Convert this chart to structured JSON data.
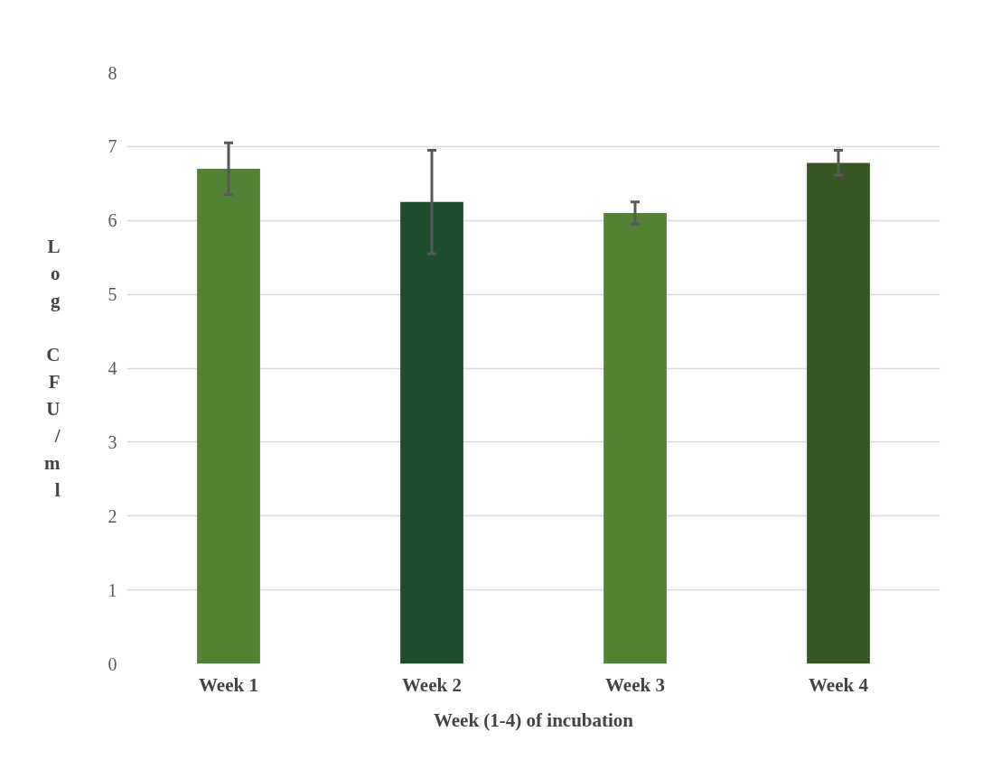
{
  "chart_data": {
    "type": "bar",
    "categories": [
      "Week 1",
      "Week 2",
      "Week 3",
      "Week 4"
    ],
    "values": [
      6.7,
      6.25,
      6.1,
      6.78
    ],
    "errors": [
      0.35,
      0.7,
      0.15,
      0.17
    ],
    "colors": [
      "#548235",
      "#1e4d2b",
      "#548235",
      "#375623"
    ],
    "xlabel": "Week (1-4) of incubation",
    "ylabel": "Log CFU/ml",
    "ylim": [
      0,
      8
    ],
    "yticks": [
      0,
      1,
      2,
      3,
      4,
      5,
      6,
      7,
      8
    ],
    "grid": "y"
  }
}
